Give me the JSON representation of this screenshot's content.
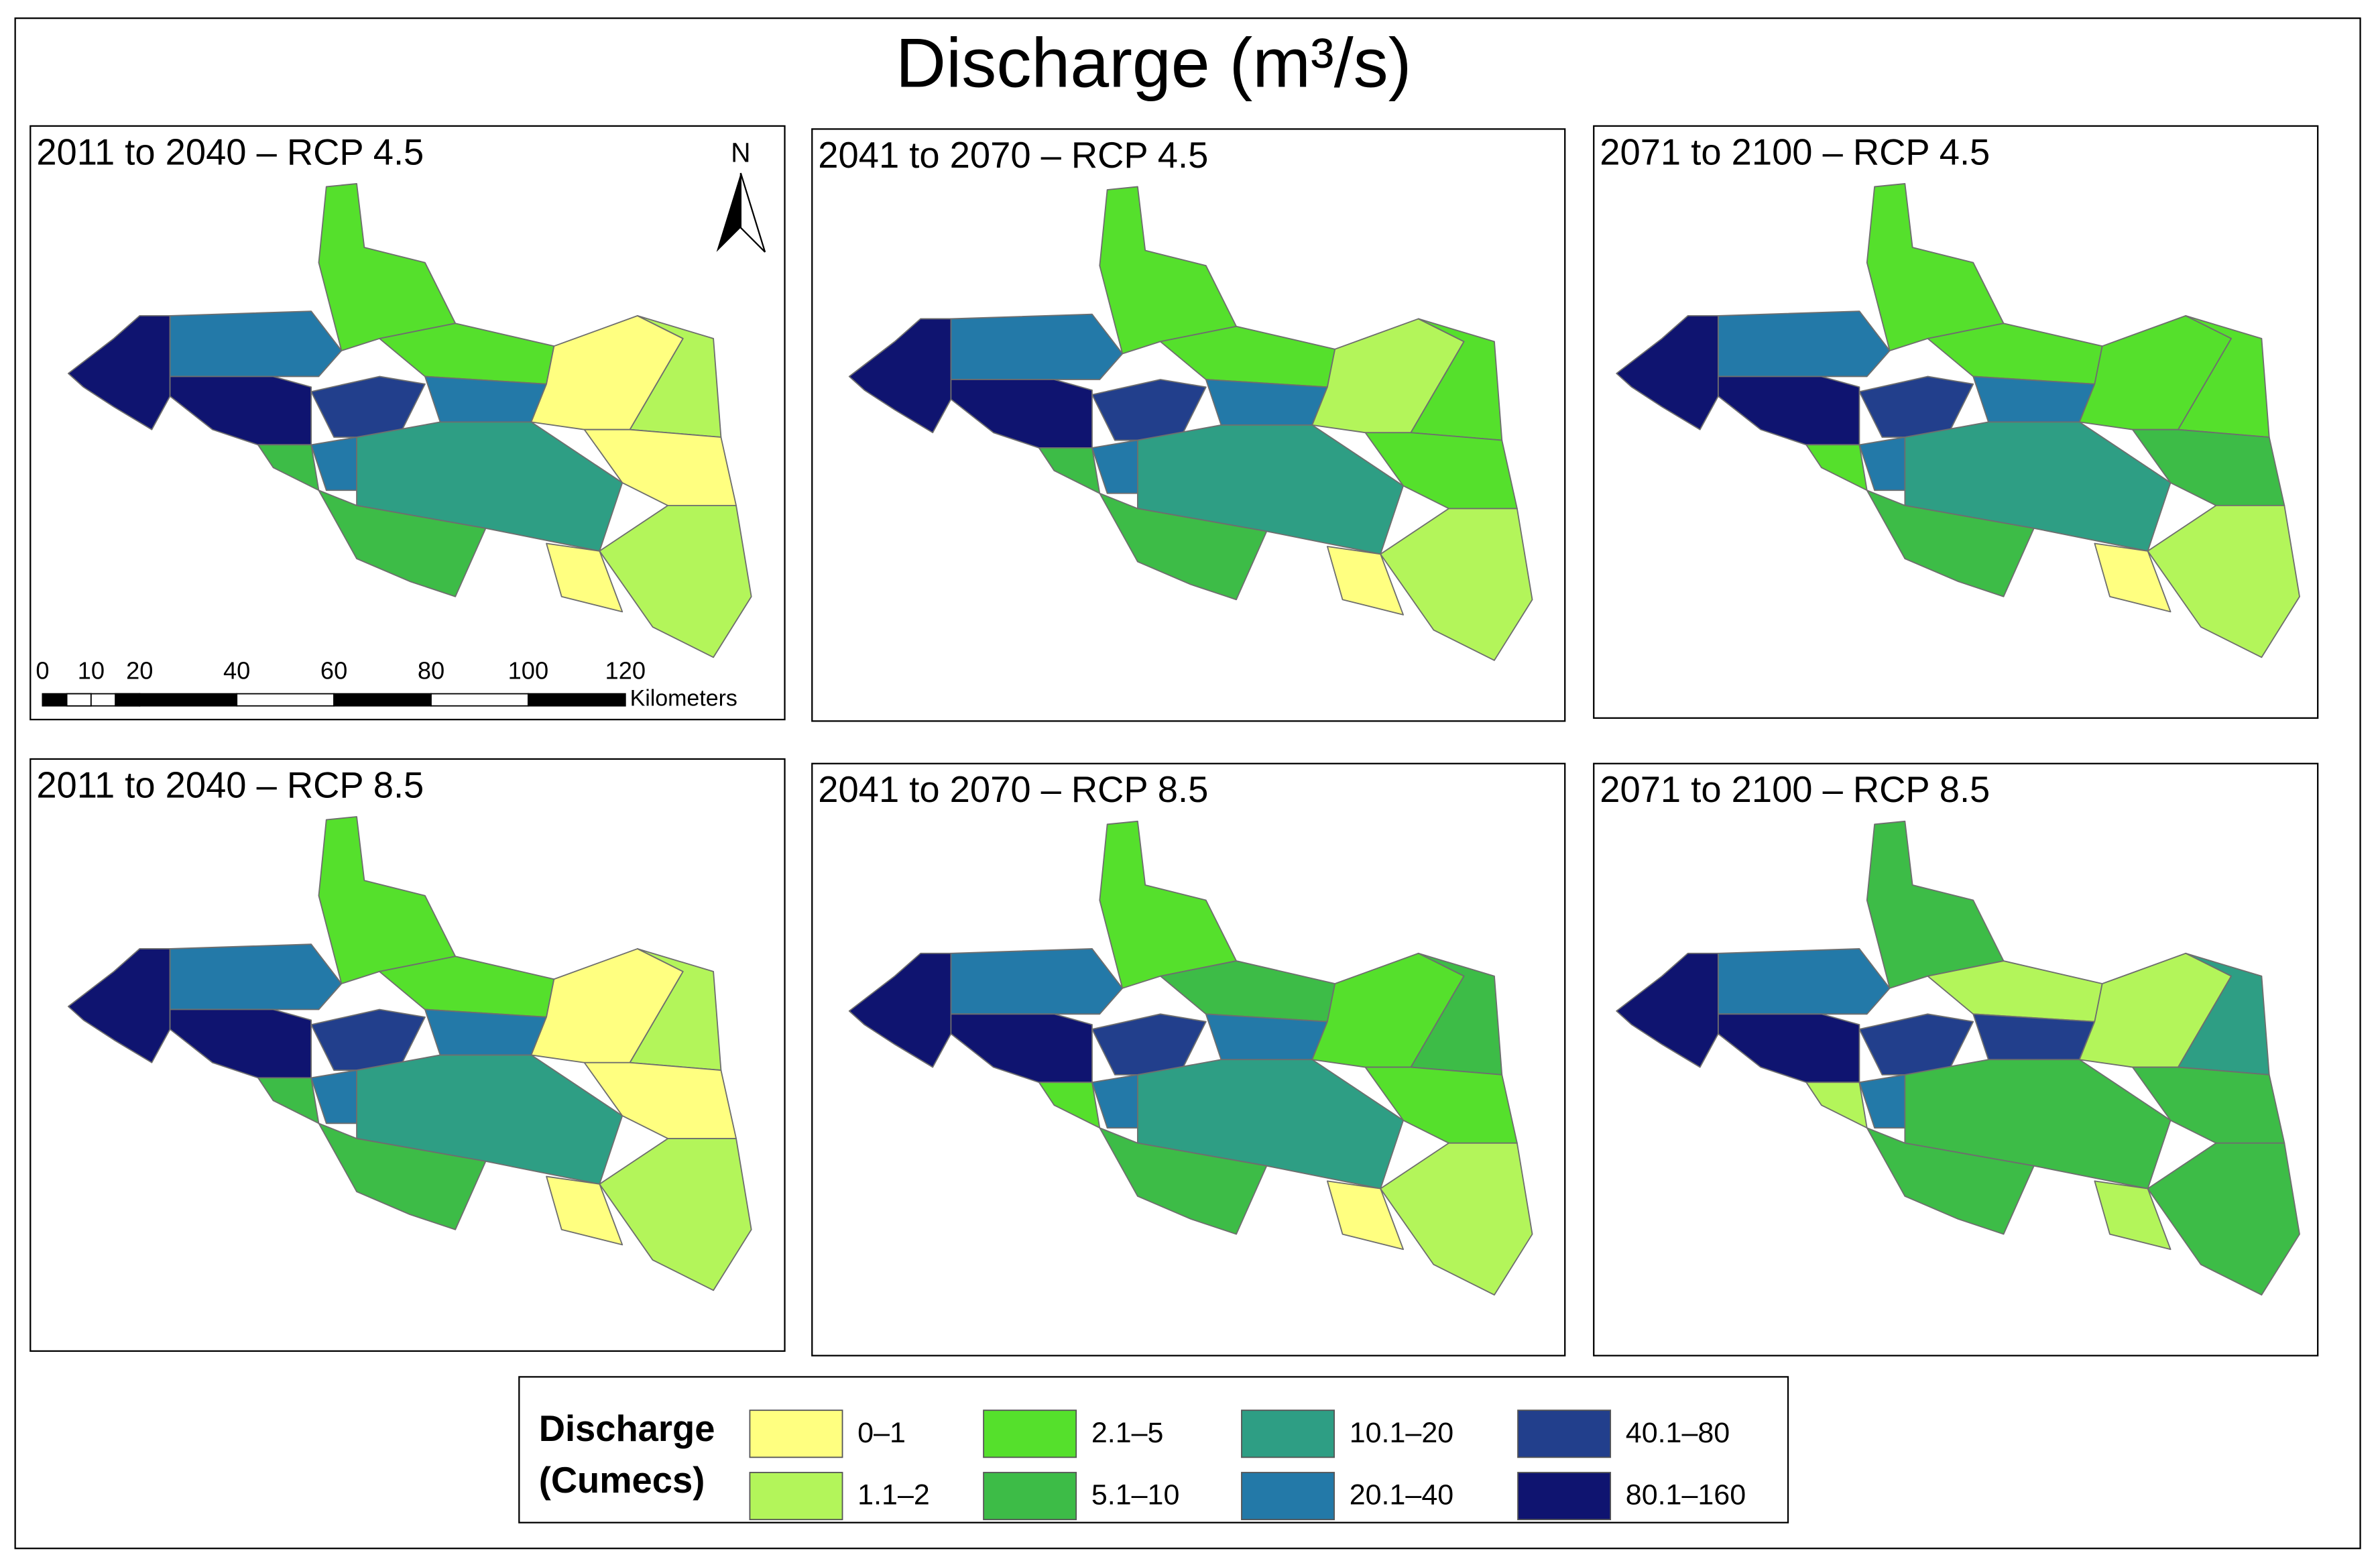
{
  "title": "Discharge (m³/s)",
  "panels": [
    {
      "title": "2011 to 2040 – RCP 4.5",
      "region_classes": [
        7,
        5,
        7,
        2,
        2,
        6,
        5,
        3,
        5,
        4,
        3,
        0,
        1,
        0,
        1,
        0
      ]
    },
    {
      "title": "2041 to 2070 – RCP 4.5",
      "region_classes": [
        7,
        5,
        7,
        2,
        2,
        6,
        5,
        3,
        5,
        4,
        3,
        1,
        2,
        2,
        1,
        0
      ]
    },
    {
      "title": "2071 to 2100 – RCP 4.5",
      "region_classes": [
        7,
        5,
        7,
        2,
        2,
        6,
        5,
        2,
        5,
        4,
        3,
        2,
        2,
        3,
        1,
        0
      ]
    },
    {
      "title": "2011 to 2040 – RCP 8.5",
      "region_classes": [
        7,
        5,
        7,
        2,
        2,
        6,
        5,
        3,
        5,
        4,
        3,
        0,
        1,
        0,
        1,
        0
      ]
    },
    {
      "title": "2041 to 2070 – RCP 8.5",
      "region_classes": [
        7,
        5,
        7,
        2,
        3,
        6,
        5,
        2,
        5,
        4,
        3,
        2,
        3,
        2,
        1,
        0
      ]
    },
    {
      "title": "2071 to 2100 – RCP 8.5",
      "region_classes": [
        7,
        5,
        7,
        3,
        1,
        6,
        6,
        1,
        5,
        3,
        3,
        1,
        4,
        3,
        3,
        1
      ]
    }
  ],
  "north": "N",
  "scale_bar": {
    "ticks": [
      0,
      10,
      20,
      40,
      60,
      80,
      100,
      120
    ],
    "unit": "Kilometers"
  },
  "legend": {
    "title": [
      "Discharge",
      "(Cumecs)"
    ],
    "items": [
      {
        "label": "0–1",
        "color": "#ffff80"
      },
      {
        "label": "1.1–2",
        "color": "#b3f55a"
      },
      {
        "label": "2.1–5",
        "color": "#55e02c"
      },
      {
        "label": "5.1–10",
        "color": "#3dbc47"
      },
      {
        "label": "10.1–20",
        "color": "#2e9e84"
      },
      {
        "label": "20.1–40",
        "color": "#2379a8"
      },
      {
        "label": "40.1–80",
        "color": "#223f8c"
      },
      {
        "label": "80.1–160",
        "color": "#0f1470"
      }
    ]
  }
}
